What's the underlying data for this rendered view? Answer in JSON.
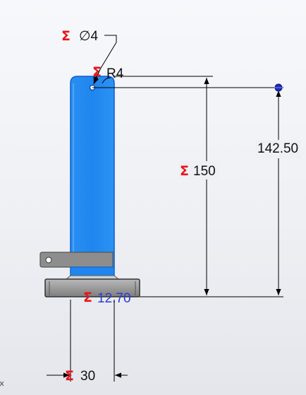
{
  "dimensions": {
    "hole_diameter": {
      "symbol": "Σ",
      "text": "∅4"
    },
    "corner_radius": {
      "symbol": "Σ",
      "text": "R4"
    },
    "total_height": {
      "symbol": "Σ",
      "text": "150"
    },
    "hole_height": {
      "text": "142.50"
    },
    "base_thickness": {
      "symbol": "Σ",
      "text": "12.70"
    },
    "width": {
      "symbol": "Σ",
      "text": "30"
    }
  },
  "colors": {
    "selected_body": "#1e86f0",
    "body_edge": "#0b5fcf",
    "bracket": "#8d8d8d",
    "base": "#9a9a9a",
    "dimension_line": "#000000",
    "driving_sigma": "#e8141b",
    "reference_value": "#2b3bd6",
    "point_marker": "#1f2bb8"
  },
  "icons": {
    "driving_dimension": "sigma-icon",
    "hole_point": "point-marker-icon"
  }
}
